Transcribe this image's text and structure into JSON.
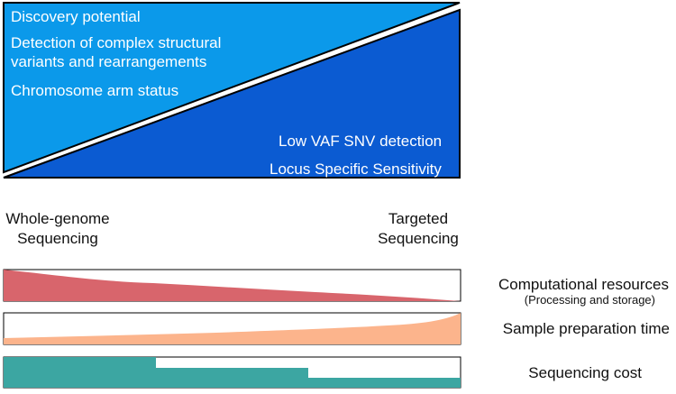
{
  "triangle": {
    "upper_color": "#0b99ea",
    "lower_color": "#0b5bd2",
    "upper_labels": [
      "Discovery potential",
      "Detection of complex structural",
      "variants and rearrangements",
      "Chromosome arm status"
    ],
    "lower_labels": [
      "Low VAF SNV detection",
      "Locus Specific Sensitivity"
    ]
  },
  "endpoints": {
    "left": [
      "Whole-genome",
      "Sequencing"
    ],
    "right": [
      "Targeted",
      "Sequencing"
    ]
  },
  "bars": [
    {
      "title": "Computational resources",
      "subtitle": "(Processing and storage)",
      "color": "#d8656c",
      "trend": "decreasing"
    },
    {
      "title": "Sample preparation time",
      "color": "#fcb48c",
      "trend": "increasing"
    },
    {
      "title": "Sequencing cost",
      "color": "#3ca6a2",
      "trend": "stepwise-decreasing"
    }
  ]
}
